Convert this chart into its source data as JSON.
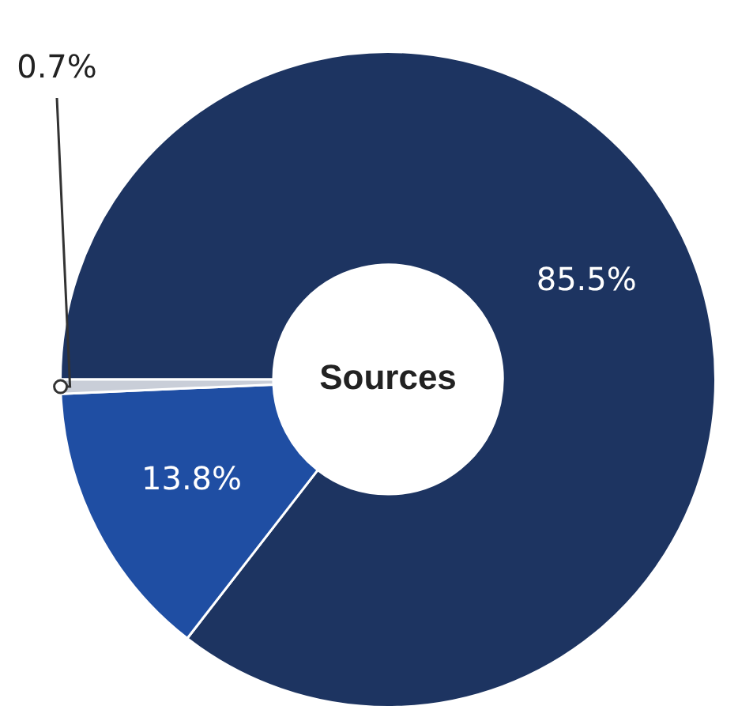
{
  "chart_data": {
    "type": "donut",
    "title": "Sources",
    "categories": [
      null,
      null,
      null
    ],
    "values": [
      85.5,
      13.8,
      0.7
    ],
    "colors": [
      "#1d3461",
      "#1f4ea3",
      "#c9ced8"
    ],
    "value_labels": [
      "85.5%",
      "13.8%",
      "0.7%"
    ],
    "legend": false
  }
}
